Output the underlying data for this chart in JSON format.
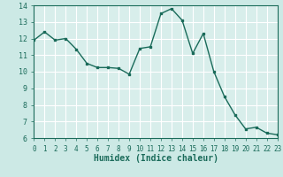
{
  "x": [
    0,
    1,
    2,
    3,
    4,
    5,
    6,
    7,
    8,
    9,
    10,
    11,
    12,
    13,
    14,
    15,
    16,
    17,
    18,
    19,
    20,
    21,
    22,
    23
  ],
  "y": [
    11.9,
    12.4,
    11.9,
    12.0,
    11.35,
    10.5,
    10.25,
    10.25,
    10.2,
    9.85,
    11.4,
    11.5,
    13.5,
    13.8,
    13.1,
    11.1,
    12.3,
    10.0,
    8.5,
    7.4,
    6.55,
    6.65,
    6.3,
    6.2
  ],
  "line_color": "#1a6b5a",
  "marker": "s",
  "marker_size": 2,
  "bg_color": "#cce9e5",
  "grid_color": "#ffffff",
  "grid_minor_color": "#e8c8c8",
  "xlabel": "Humidex (Indice chaleur)",
  "ylim": [
    6,
    14
  ],
  "xlim": [
    0,
    23
  ],
  "yticks": [
    6,
    7,
    8,
    9,
    10,
    11,
    12,
    13,
    14
  ],
  "xticks": [
    0,
    1,
    2,
    3,
    4,
    5,
    6,
    7,
    8,
    9,
    10,
    11,
    12,
    13,
    14,
    15,
    16,
    17,
    18,
    19,
    20,
    21,
    22,
    23
  ],
  "tick_color": "#1a6b5a",
  "label_color": "#1a6b5a",
  "font_family": "monospace",
  "tick_fontsize": 6,
  "xlabel_fontsize": 7
}
